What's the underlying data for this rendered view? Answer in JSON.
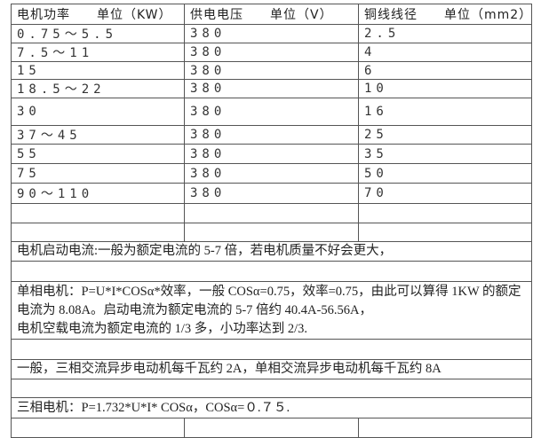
{
  "header": [
    "电机功率　　单位（KW）",
    "供电电压　　单位（V）",
    "铜线线径　　单位（mm2）"
  ],
  "rows": [
    [
      "0.75～5.5",
      "380",
      "2.5"
    ],
    [
      "7.5～11",
      "380",
      "4"
    ],
    [
      "15",
      "380",
      "6"
    ],
    [
      "18.5～22",
      "380",
      "10"
    ],
    [
      "30",
      "380",
      "16"
    ],
    [
      "37～45",
      "380",
      "25"
    ],
    [
      "55",
      "380",
      "35"
    ],
    [
      "75",
      "380",
      "50"
    ],
    [
      "90～110",
      "380",
      "70"
    ]
  ],
  "notes": {
    "starting_current": "电机启动电流:一般为额定电流的 5-7 倍，若电机质量不好会更大，",
    "single_phase_1": "单相电机：P=U*I*COSα*效率，一般 COSα=0.75，效率=0.75，由此可以算得 1KW 的额定电流为 8.08A。启动电流为额定电流的 5-7 倍约 40.4A-56.56A，",
    "single_phase_2": "电机空载电流为额定电流的 1/3 多，小功率达到 2/3.",
    "per_kw": "一般，三相交流异步电动机每千瓦约 2A，单相交流异步电动机每千瓦约 8A",
    "three_phase": "三相电机：P=1.732*U*I* COSα，COSα=０.７５."
  }
}
